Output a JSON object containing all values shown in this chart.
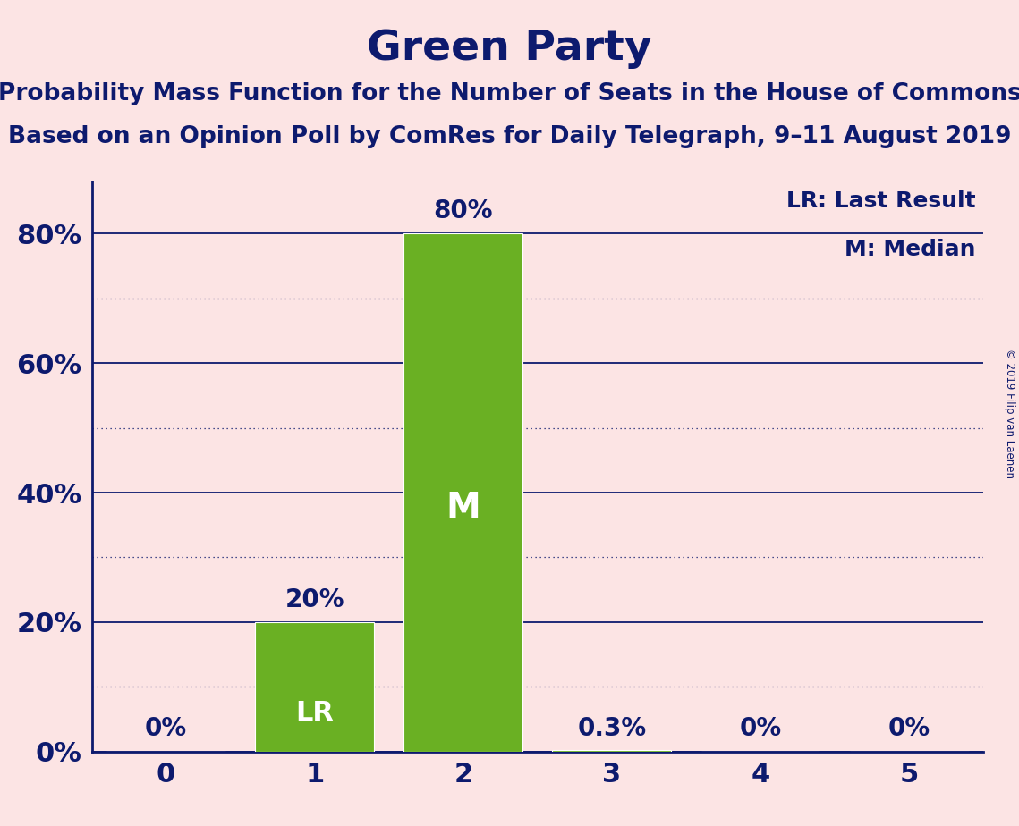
{
  "title": "Green Party",
  "subtitle1": "Probability Mass Function for the Number of Seats in the House of Commons",
  "subtitle2": "Based on an Opinion Poll by ComRes for Daily Telegraph, 9–11 August 2019",
  "copyright": "© 2019 Filip van Laenen",
  "legend_line1": "LR: Last Result",
  "legend_line2": "M: Median",
  "categories": [
    0,
    1,
    2,
    3,
    4,
    5
  ],
  "values": [
    0.0,
    0.2,
    0.8,
    0.003,
    0.0,
    0.0
  ],
  "bar_labels": [
    "0%",
    "20%",
    "80%",
    "0.3%",
    "0%",
    "0%"
  ],
  "bar_color": "#6ab023",
  "background_color": "#fce4e4",
  "text_color": "#0d1a6e",
  "grid_color": "#0d1a6e",
  "axis_color": "#0d1a6e",
  "ylim": [
    0,
    0.88
  ],
  "yticks": [
    0.0,
    0.2,
    0.4,
    0.6,
    0.8
  ],
  "ytick_labels": [
    "0%",
    "20%",
    "40%",
    "60%",
    "80%"
  ],
  "minor_yticks": [
    0.1,
    0.3,
    0.5,
    0.7
  ],
  "bar_width": 0.8,
  "lr_bar_index": 1,
  "median_bar_index": 2,
  "title_fontsize": 34,
  "subtitle_fontsize": 19,
  "tick_fontsize": 22,
  "bar_label_fontsize": 20,
  "legend_fontsize": 18,
  "in_bar_fontsize_lr": 22,
  "in_bar_fontsize_m": 28
}
